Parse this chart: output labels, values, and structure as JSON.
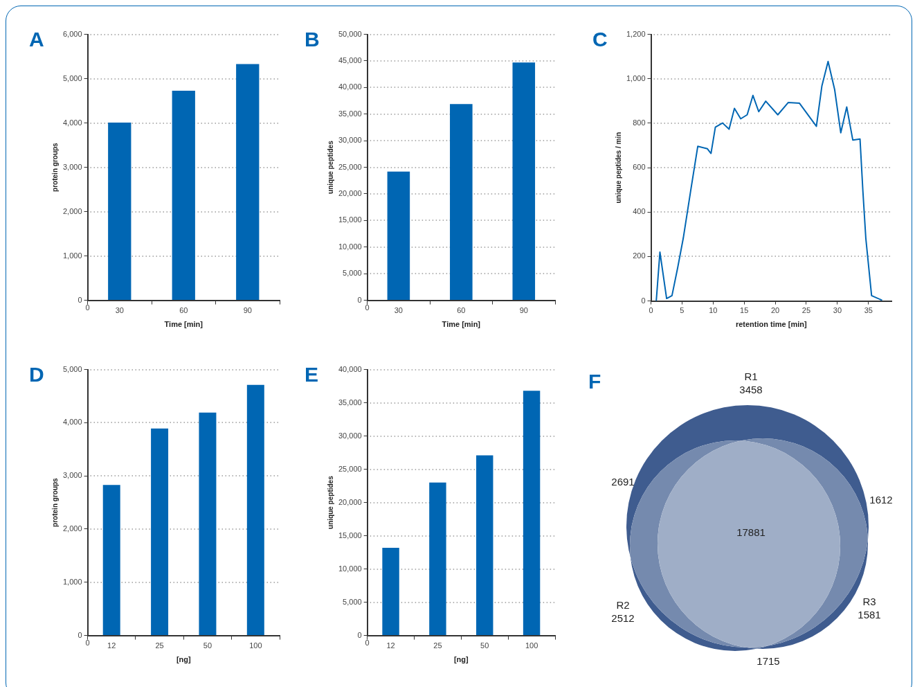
{
  "chart_data": [
    {
      "type": "bar",
      "title": "A",
      "ylabel": "protein groups",
      "xlabel": "Time [min]",
      "categories": [
        "30",
        "60",
        "90"
      ],
      "values": [
        4010,
        4730,
        5330
      ],
      "color": "#0066b3",
      "ylim": [
        0,
        6000
      ],
      "yticks": [
        0,
        {
          "value": 1000,
          "label": "1,000"
        },
        {
          "value": 2000,
          "label": "2,000"
        },
        {
          "value": 3000,
          "label": "3,000"
        },
        {
          "value": 4000,
          "label": "4,000"
        },
        {
          "value": 5000,
          "label": "5,000"
        },
        {
          "value": 6000,
          "label": "6,000"
        }
      ],
      "grid": "y",
      "annotations": [
        "0"
      ]
    },
    {
      "type": "bar",
      "title": "B",
      "ylabel": "unique peptides",
      "xlabel": "Time [min]",
      "categories": [
        "30",
        "60",
        "90"
      ],
      "values": [
        24200,
        36900,
        44700
      ],
      "color": "#0066b3",
      "ylim": [
        0,
        50000
      ],
      "yticks": [
        0,
        {
          "value": 5000,
          "label": "5,000"
        },
        {
          "value": 10000,
          "label": "10,000"
        },
        {
          "value": 15000,
          "label": "15,000"
        },
        {
          "value": 20000,
          "label": "20,000"
        },
        {
          "value": 25000,
          "label": "25,000"
        },
        {
          "value": 30000,
          "label": "30,000"
        },
        {
          "value": 35000,
          "label": "35,000"
        },
        {
          "value": 40000,
          "label": "40,000"
        },
        {
          "value": 45000,
          "label": "45,000"
        },
        {
          "value": 50000,
          "label": "50,000"
        }
      ],
      "grid": "y",
      "annotations": [
        "0"
      ]
    },
    {
      "type": "line",
      "title": "C",
      "ylabel": "unique peptides / min",
      "xlabel": "retention time [min]",
      "color": "#0066b3",
      "marker": "none",
      "x": [
        0.85,
        1.44,
        2.52,
        3.38,
        4.3,
        5.2,
        6.44,
        7.53,
        9.08,
        9.66,
        10.36,
        11.52,
        12.57,
        13.43,
        14.44,
        15.48,
        16.41,
        17.34,
        18.47,
        20.41,
        22.08,
        23.9,
        26.62,
        27.5,
        28.5,
        29.56,
        30.54,
        31.5,
        32.48,
        33.64,
        34.1,
        34.57,
        35.5,
        37.2
      ],
      "values": [
        0,
        220,
        11,
        24,
        150,
        283,
        505,
        696,
        685,
        664,
        782,
        801,
        773,
        867,
        820,
        838,
        925,
        852,
        899,
        838,
        893,
        890,
        786,
        967,
        1078,
        951,
        757,
        873,
        724,
        729,
        495,
        283,
        24,
        3
      ],
      "xlim": [
        0,
        38.7
      ],
      "xticks": [
        0,
        5,
        10,
        15,
        20,
        25,
        30,
        35
      ],
      "ylim": [
        0,
        1200
      ],
      "yticks": [
        0,
        200,
        400,
        600,
        800,
        {
          "value": 1000,
          "label": "1,000"
        },
        {
          "value": 1200,
          "label": "1,200"
        }
      ],
      "grid": "y"
    },
    {
      "type": "bar",
      "title": "D",
      "ylabel": "protein groups",
      "xlabel": "[ng]",
      "categories": [
        "12",
        "25",
        "50",
        "100"
      ],
      "values": [
        2830,
        3890,
        4190,
        4710
      ],
      "color": "#0066b3",
      "ylim": [
        0,
        5000
      ],
      "yticks": [
        0,
        {
          "value": 1000,
          "label": "1,000"
        },
        {
          "value": 2000,
          "label": "2,000"
        },
        {
          "value": 3000,
          "label": "3,000"
        },
        {
          "value": 4000,
          "label": "4,000"
        },
        {
          "value": 5000,
          "label": "5,000"
        }
      ],
      "grid": "y",
      "annotations": [
        "0"
      ]
    },
    {
      "type": "bar",
      "title": "E",
      "ylabel": "unique peptides",
      "xlabel": "[ng]",
      "categories": [
        "12",
        "25",
        "50",
        "100"
      ],
      "values": [
        13200,
        23000,
        27100,
        36800
      ],
      "color": "#0066b3",
      "ylim": [
        0,
        40000
      ],
      "yticks": [
        0,
        {
          "value": 5000,
          "label": "5,000"
        },
        {
          "value": 10000,
          "label": "10,000"
        },
        {
          "value": 15000,
          "label": "15,000"
        },
        {
          "value": 20000,
          "label": "20,000"
        },
        {
          "value": 25000,
          "label": "25,000"
        },
        {
          "value": 30000,
          "label": "30,000"
        },
        {
          "value": 35000,
          "label": "35,000"
        },
        {
          "value": 40000,
          "label": "40,000"
        }
      ],
      "grid": "y",
      "annotations": [
        "0"
      ]
    },
    {
      "type": "other",
      "title": "F",
      "categories": [
        "R1",
        "R2",
        "R3"
      ],
      "values": [
        3458,
        2512,
        1581
      ],
      "annotations": [
        "2691",
        "1612",
        "1715",
        "17881"
      ],
      "data_labels": true,
      "colors": [
        "#3f5c8f",
        "#3f5c8f",
        "#3f5c8f"
      ]
    }
  ]
}
